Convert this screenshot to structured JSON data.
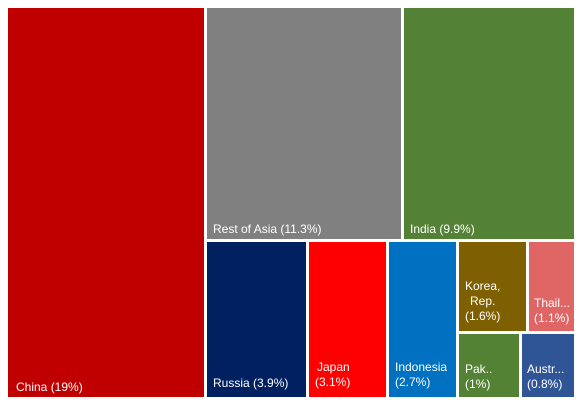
{
  "chart_data": {
    "type": "treemap",
    "unit": "%",
    "items": [
      {
        "label": "China (19%)",
        "name": "China",
        "value": 19,
        "color": "#c00000"
      },
      {
        "label": "Rest of Asia (11.3%)",
        "name": "Rest of Asia",
        "value": 11.3,
        "color": "#808080"
      },
      {
        "label": "India (9.9%)",
        "name": "India",
        "value": 9.9,
        "color": "#538135"
      },
      {
        "label": "Russia (3.9%)",
        "name": "Russia",
        "value": 3.9,
        "color": "#002060"
      },
      {
        "label": "Japan (3.1%)",
        "name": "Japan",
        "value": 3.1,
        "color": "#ff0000"
      },
      {
        "label": "Indonesia (2.7%)",
        "name": "Indonesia",
        "value": 2.7,
        "color": "#0070c0"
      },
      {
        "label": "Korea, Rep. (1.6%)",
        "name": "Korea, Rep.",
        "value": 1.6,
        "color": "#7f6000"
      },
      {
        "label": "Thail... (1.1%)",
        "name": "Thail...",
        "value": 1.1,
        "color": "#e06666"
      },
      {
        "label": "Pak.. (1%)",
        "name": "Pak..",
        "value": 1,
        "color": "#548235"
      },
      {
        "label": "Austr... (0.8%)",
        "name": "Austr...",
        "value": 0.8,
        "color": "#2f5597"
      }
    ]
  }
}
